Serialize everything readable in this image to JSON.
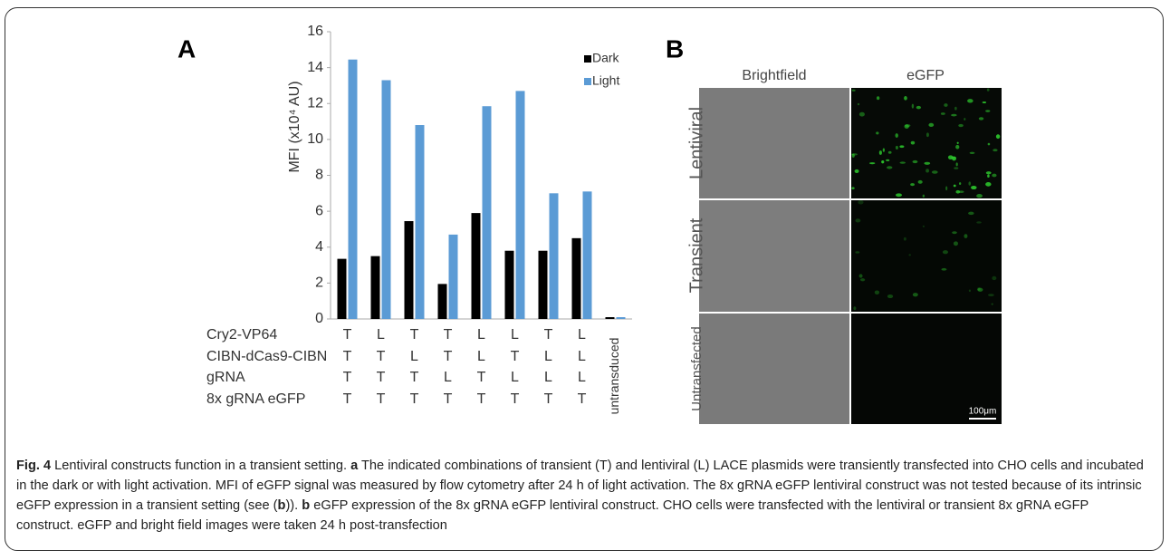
{
  "panel_labels": [
    "A",
    "B"
  ],
  "chart_data": {
    "type": "bar",
    "y_label": "MFI (x10⁴ AU)",
    "categories": [
      null,
      null,
      null,
      null,
      null,
      null,
      null,
      null,
      "untransduced"
    ],
    "series": [
      {
        "name": "Dark",
        "color": "#000000",
        "values": [
          3.35,
          3.5,
          5.45,
          1.95,
          5.9,
          3.8,
          3.8,
          4.5,
          0.1
        ]
      },
      {
        "name": "Light",
        "color": "#5b9bd5",
        "values": [
          14.45,
          13.3,
          10.8,
          4.7,
          11.85,
          12.7,
          7.0,
          7.1,
          0.1
        ]
      }
    ],
    "ylim": [
      0,
      16
    ],
    "yticks": [
      0,
      2,
      4,
      6,
      8,
      10,
      12,
      14,
      16
    ],
    "grid": false,
    "legend": "top-right",
    "table": {
      "row_labels": [
        "Cry2-VP64",
        "CIBN-dCas9-CIBN",
        "gRNA",
        "8x gRNA eGFP"
      ],
      "rows": [
        [
          "T",
          "L",
          "T",
          "T",
          "L",
          "L",
          "T",
          "L"
        ],
        [
          "T",
          "T",
          "L",
          "T",
          "L",
          "T",
          "L",
          "L"
        ],
        [
          "T",
          "T",
          "T",
          "L",
          "T",
          "L",
          "L",
          "L"
        ],
        [
          "T",
          "T",
          "T",
          "T",
          "T",
          "T",
          "T",
          "T"
        ]
      ]
    }
  },
  "microscopy": {
    "columns": [
      "Brightfield",
      "eGFP"
    ],
    "rows": [
      "Lentiviral",
      "Transient",
      "Untransfected"
    ],
    "scale_bar": "100μm"
  },
  "caption": {
    "figure_label": "Fig. 4",
    "title": "Lentiviral constructs function in a transient setting.",
    "part_a_label": "a",
    "part_a_text": "The indicated combinations of transient (T) and lentiviral (L) LACE plasmids were transiently transfected into CHO cells and incubated in the dark or with light activation. MFI of eGFP signal was measured by flow cytometry after 24 h of light activation. The 8x gRNA eGFP lentiviral construct was not tested because of its intrinsic eGFP expression in a transient setting (see (",
    "part_a_ref": "b",
    "part_a_end": ")).",
    "part_b_label": "b",
    "part_b_text": "eGFP expression of the 8x gRNA eGFP lentiviral construct. CHO cells were transfected with the lentiviral or transient 8x gRNA eGFP construct. eGFP and bright field images were taken 24 h post-transfection"
  }
}
